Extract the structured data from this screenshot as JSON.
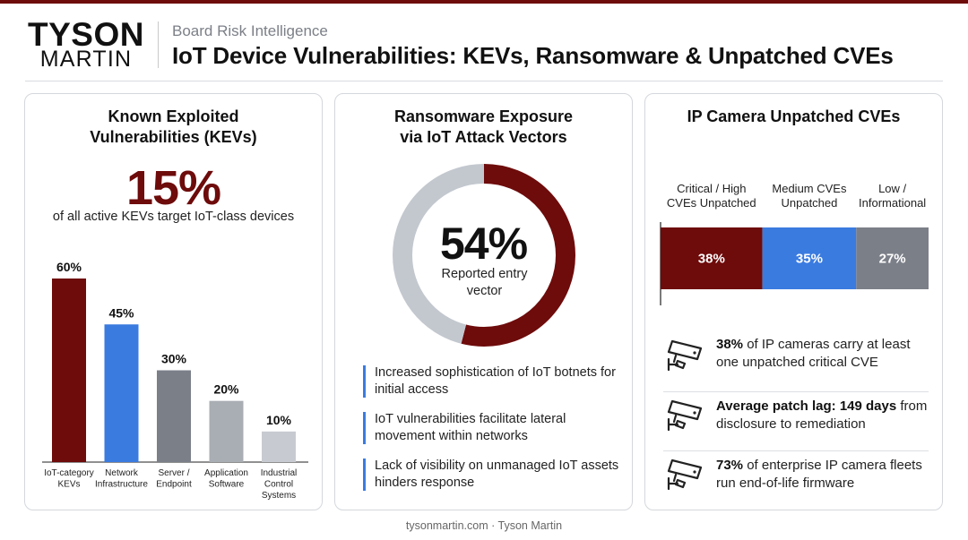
{
  "colors": {
    "brand_dark_red": "#6e0b0b",
    "blue": "#3a7be0",
    "slate": "#7b7f88",
    "mid_gray": "#a9adb4",
    "light_gray": "#c7cbd1",
    "donut_track": "#c3c8cf"
  },
  "header": {
    "logo_top": "TYSON",
    "logo_bottom": "MARTIN",
    "subtitle": "Board Risk Intelligence",
    "title": "IoT Device Vulnerabilities: KEVs, Ransomware & Unpatched CVEs"
  },
  "kev_panel": {
    "title": "Known Exploited Vulnerabilities (KEVs)",
    "big_value": "15%",
    "big_caption": "of all active KEVs target IoT-class devices"
  },
  "ransomware_panel": {
    "title": "Ransomware Exposure via IoT Attack Vectors",
    "donut_value": "54%",
    "donut_caption": "Reported entry vector",
    "bullets": [
      "Increased sophistication of IoT botnets for initial access",
      "IoT vulnerabilities facilitate lateral movement within networks",
      "Lack of visibility on unmanaged IoT assets hinders response"
    ]
  },
  "camera_panel": {
    "title": "IP Camera Unpatched CVEs",
    "stats": [
      {
        "icon": "security-camera-icon",
        "bold": "38%",
        "text": " of IP cameras carry at least one unpatched critical CVE"
      },
      {
        "icon": "security-camera-icon",
        "bold": "Average patch lag: 149 days",
        "text": " from disclosure to remediation"
      },
      {
        "icon": "security-camera-icon",
        "bold": "73%",
        "text": " of enterprise IP camera fleets run end-of-life firmware"
      }
    ]
  },
  "footer": "tysonmartin.com · Tyson Martin",
  "chart_data": [
    {
      "type": "bar",
      "categories": [
        "IoT-category KEVs",
        "Network Infrastructure",
        "Server / Endpoint",
        "Application Software",
        "Industrial Control Systems"
      ],
      "category_lines": [
        [
          "IoT-category",
          "KEVs"
        ],
        [
          "Network",
          "Infrastructure"
        ],
        [
          "Server /",
          "Endpoint"
        ],
        [
          "Application",
          "Software"
        ],
        [
          "Industrial",
          "Control",
          "Systems"
        ]
      ],
      "values": [
        60,
        45,
        30,
        20,
        10
      ],
      "value_labels": [
        "60%",
        "45%",
        "30%",
        "20%",
        "10%"
      ],
      "bar_colors": [
        "#6e0b0b",
        "#3a7be0",
        "#7b7f88",
        "#a9adb4",
        "#c7cbd1"
      ],
      "ylim": [
        0,
        60
      ],
      "grid": false
    },
    {
      "type": "pie",
      "donut": true,
      "labels": [
        "Reported entry vector",
        "Other"
      ],
      "values": [
        54,
        46
      ],
      "colors": [
        "#6e0b0b",
        "#c3c8cf"
      ]
    },
    {
      "type": "bar",
      "stacked": true,
      "orientation": "horizontal",
      "categories": [
        "Critical / High CVEs Unpatched",
        "Medium CVEs Unpatched",
        "Low / Informational"
      ],
      "category_lines": [
        [
          "Critical / High",
          "CVEs Unpatched"
        ],
        [
          "Medium CVEs",
          "Unpatched"
        ],
        [
          "Low /",
          "Informational"
        ]
      ],
      "values": [
        38,
        35,
        27
      ],
      "value_labels": [
        "38%",
        "35%",
        "27%"
      ],
      "colors": [
        "#6e0b0b",
        "#3a7be0",
        "#7b7f88"
      ]
    }
  ]
}
